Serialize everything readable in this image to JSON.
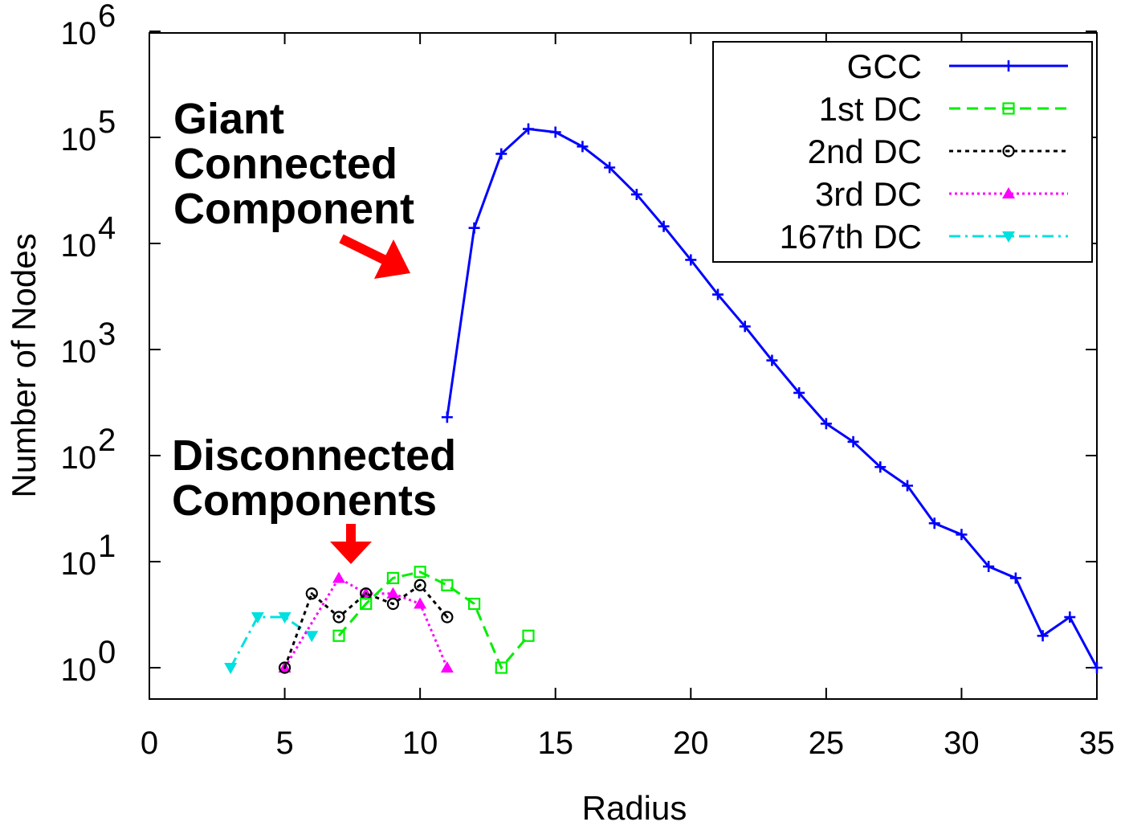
{
  "chart_data": {
    "type": "line",
    "xlabel": "Radius",
    "ylabel": "Number of Nodes",
    "xlim": [
      0,
      35
    ],
    "ylim_log10": [
      -0.3,
      6
    ],
    "yscale": "log",
    "legend_position": "top-right",
    "x_ticks": [
      "0",
      "5",
      "10",
      "15",
      "20",
      "25",
      "30",
      "35"
    ],
    "y_ticks": [
      {
        "base": "10",
        "exp": "0"
      },
      {
        "base": "10",
        "exp": "1"
      },
      {
        "base": "10",
        "exp": "2"
      },
      {
        "base": "10",
        "exp": "3"
      },
      {
        "base": "10",
        "exp": "4"
      },
      {
        "base": "10",
        "exp": "5"
      },
      {
        "base": "10",
        "exp": "6"
      }
    ],
    "series": [
      {
        "name": "GCC",
        "color": "#0000ff",
        "dash": "",
        "marker": "plus",
        "x": [
          11,
          12,
          13,
          14,
          15,
          16,
          17,
          18,
          19,
          20,
          21,
          22,
          23,
          24,
          25,
          26,
          27,
          28,
          29,
          30,
          31,
          32,
          33,
          34,
          35
        ],
        "y": [
          230,
          14000,
          70000,
          120000,
          112000,
          82000,
          52000,
          29000,
          14500,
          7000,
          3300,
          1650,
          790,
          390,
          200,
          135,
          78,
          52,
          23,
          18,
          9,
          7,
          2,
          3,
          1
        ]
      },
      {
        "name": "1st DC",
        "color": "#00ee00",
        "dash": "14,8",
        "marker": "square",
        "x": [
          7,
          8,
          9,
          10,
          11,
          12,
          13,
          14
        ],
        "y": [
          2,
          4,
          7,
          8,
          6,
          4,
          1,
          2
        ]
      },
      {
        "name": "2nd DC",
        "color": "#000000",
        "dash": "5,5",
        "marker": "circle",
        "x": [
          5,
          6,
          7,
          8,
          9,
          10,
          11
        ],
        "y": [
          1,
          5,
          3,
          5,
          4,
          6,
          3
        ]
      },
      {
        "name": "3rd DC",
        "color": "#ff00ff",
        "dash": "3,4",
        "marker": "triangle-up",
        "x": [
          5,
          7,
          8,
          9,
          10,
          11
        ],
        "y": [
          1,
          7,
          5,
          5,
          4,
          1
        ]
      },
      {
        "name": "167th DC",
        "color": "#00e0e0",
        "dash": "14,6,3,6",
        "marker": "triangle-down",
        "x": [
          3,
          4,
          5,
          6
        ],
        "y": [
          1,
          3,
          3,
          2
        ]
      }
    ],
    "annotations": [
      {
        "lines": [
          "Giant",
          "Connected",
          "Component"
        ],
        "color": "#000000",
        "arrow_color": "#ff0000"
      },
      {
        "lines": [
          "Disconnected",
          "Components"
        ],
        "color": "#000000",
        "arrow_color": "#ff0000"
      }
    ]
  }
}
